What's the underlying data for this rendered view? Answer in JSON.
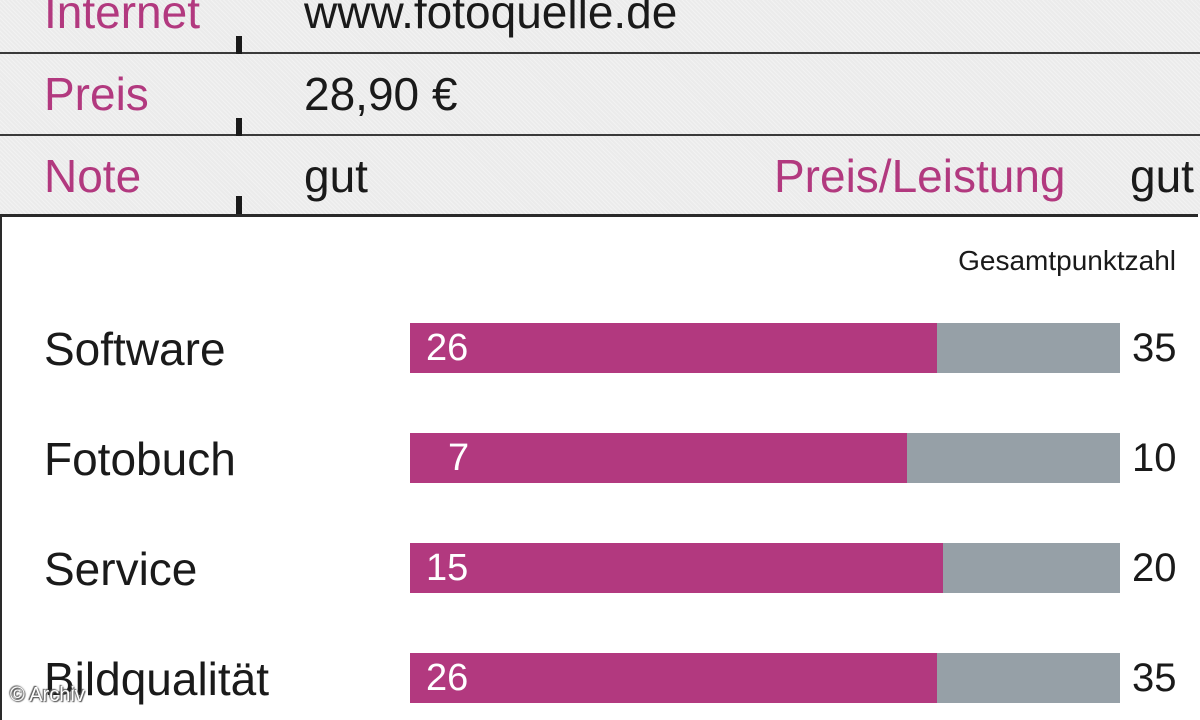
{
  "info": {
    "internet_label": "Internet",
    "internet_value": "www.fotoquelle.de",
    "preis_label": "Preis",
    "preis_value": "28,90 €",
    "note_label": "Note",
    "note_value": "gut",
    "preis_leistung_label": "Preis/Leistung",
    "preis_leistung_value": "gut"
  },
  "chart_data": {
    "type": "bar",
    "orientation": "horizontal",
    "title": "",
    "total_header": "Gesamtpunktzahl",
    "categories": [
      "Software",
      "Fotobuch",
      "Service",
      "Bildqualität"
    ],
    "values": [
      26,
      7,
      15,
      26
    ],
    "max_values": [
      35,
      10,
      20,
      35
    ],
    "colors": {
      "score": "#b2397f",
      "remaining": "#96a0a7",
      "label_accent": "#b2397f"
    }
  },
  "footer": {
    "copyright": "© Archiv"
  }
}
